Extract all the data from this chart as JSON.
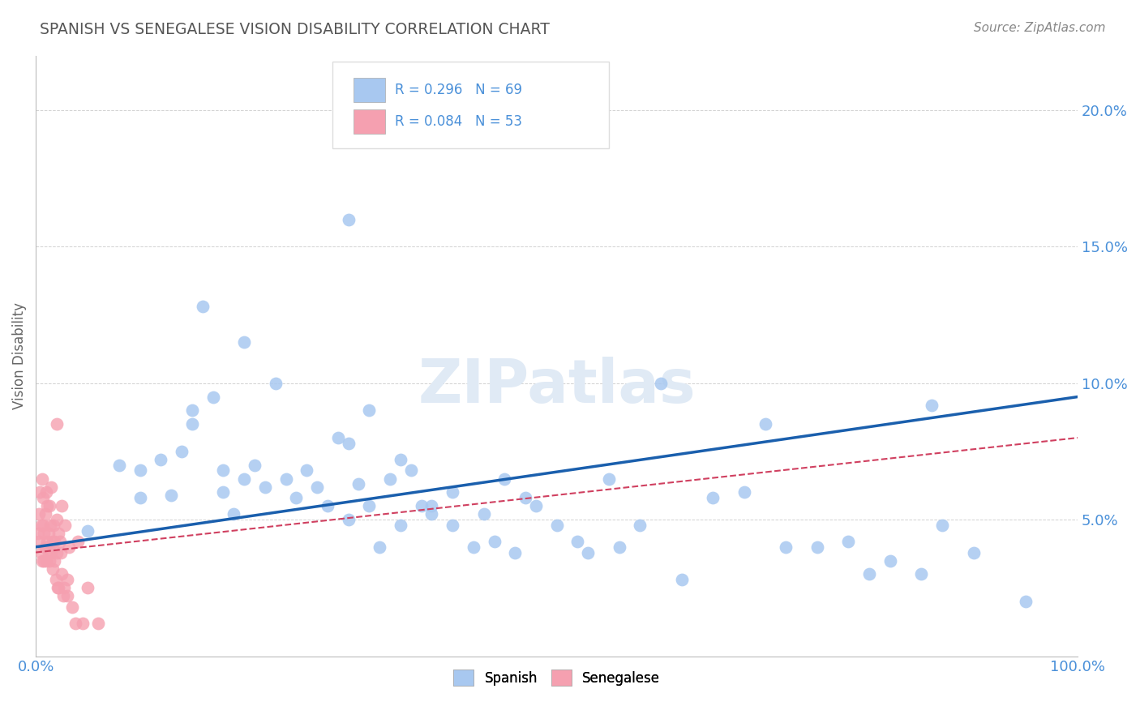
{
  "title": "SPANISH VS SENEGALESE VISION DISABILITY CORRELATION CHART",
  "source": "Source: ZipAtlas.com",
  "ylabel": "Vision Disability",
  "xlabel": "",
  "xlim": [
    0,
    1.0
  ],
  "ylim": [
    0,
    0.22
  ],
  "xticks": [
    0.0,
    0.2,
    0.4,
    0.6,
    0.8,
    1.0
  ],
  "xticklabels": [
    "0.0%",
    "",
    "",
    "",
    "",
    "100.0%"
  ],
  "yticks": [
    0.0,
    0.05,
    0.1,
    0.15,
    0.2
  ],
  "yticklabels": [
    "",
    "5.0%",
    "10.0%",
    "15.0%",
    "20.0%"
  ],
  "spanish_R": 0.296,
  "spanish_N": 69,
  "senegalese_R": 0.084,
  "senegalese_N": 53,
  "spanish_color": "#a8c8f0",
  "senegalese_color": "#f5a0b0",
  "spanish_line_color": "#1a5fad",
  "senegalese_line_color": "#d04060",
  "watermark": "ZIPatlas",
  "title_color": "#555555",
  "axis_color": "#4a90d9",
  "spanish_line_y0": 0.04,
  "spanish_line_y1": 0.095,
  "senegalese_line_y0": 0.038,
  "senegalese_line_y1": 0.08,
  "spanish_x": [
    0.05,
    0.08,
    0.1,
    0.1,
    0.12,
    0.13,
    0.14,
    0.15,
    0.15,
    0.16,
    0.17,
    0.18,
    0.18,
    0.19,
    0.2,
    0.2,
    0.21,
    0.22,
    0.23,
    0.24,
    0.25,
    0.26,
    0.27,
    0.28,
    0.29,
    0.3,
    0.3,
    0.31,
    0.32,
    0.33,
    0.34,
    0.35,
    0.35,
    0.36,
    0.37,
    0.38,
    0.3,
    0.32,
    0.38,
    0.4,
    0.4,
    0.42,
    0.43,
    0.44,
    0.45,
    0.46,
    0.47,
    0.48,
    0.5,
    0.52,
    0.53,
    0.55,
    0.56,
    0.58,
    0.6,
    0.62,
    0.65,
    0.68,
    0.7,
    0.72,
    0.75,
    0.78,
    0.8,
    0.82,
    0.85,
    0.87,
    0.9,
    0.86,
    0.95
  ],
  "spanish_y": [
    0.046,
    0.07,
    0.058,
    0.068,
    0.072,
    0.059,
    0.075,
    0.085,
    0.09,
    0.128,
    0.095,
    0.068,
    0.06,
    0.052,
    0.115,
    0.065,
    0.07,
    0.062,
    0.1,
    0.065,
    0.058,
    0.068,
    0.062,
    0.055,
    0.08,
    0.078,
    0.05,
    0.063,
    0.055,
    0.04,
    0.065,
    0.048,
    0.072,
    0.068,
    0.055,
    0.052,
    0.16,
    0.09,
    0.055,
    0.048,
    0.06,
    0.04,
    0.052,
    0.042,
    0.065,
    0.038,
    0.058,
    0.055,
    0.048,
    0.042,
    0.038,
    0.065,
    0.04,
    0.048,
    0.1,
    0.028,
    0.058,
    0.06,
    0.085,
    0.04,
    0.04,
    0.042,
    0.03,
    0.035,
    0.03,
    0.048,
    0.038,
    0.092,
    0.02
  ],
  "senegalese_x": [
    0.002,
    0.003,
    0.003,
    0.004,
    0.005,
    0.005,
    0.006,
    0.006,
    0.007,
    0.007,
    0.008,
    0.008,
    0.009,
    0.009,
    0.01,
    0.01,
    0.011,
    0.011,
    0.012,
    0.012,
    0.013,
    0.013,
    0.014,
    0.015,
    0.015,
    0.016,
    0.016,
    0.017,
    0.018,
    0.018,
    0.019,
    0.02,
    0.02,
    0.021,
    0.022,
    0.022,
    0.023,
    0.024,
    0.025,
    0.025,
    0.026,
    0.027,
    0.028,
    0.03,
    0.03,
    0.032,
    0.035,
    0.038,
    0.04,
    0.045,
    0.05,
    0.06,
    0.02
  ],
  "senegalese_y": [
    0.045,
    0.052,
    0.042,
    0.06,
    0.038,
    0.048,
    0.065,
    0.035,
    0.058,
    0.048,
    0.045,
    0.035,
    0.052,
    0.04,
    0.06,
    0.035,
    0.055,
    0.042,
    0.045,
    0.038,
    0.055,
    0.035,
    0.048,
    0.038,
    0.062,
    0.042,
    0.032,
    0.048,
    0.042,
    0.035,
    0.028,
    0.05,
    0.038,
    0.025,
    0.045,
    0.025,
    0.042,
    0.038,
    0.055,
    0.03,
    0.022,
    0.025,
    0.048,
    0.022,
    0.028,
    0.04,
    0.018,
    0.012,
    0.042,
    0.012,
    0.025,
    0.012,
    0.085
  ]
}
